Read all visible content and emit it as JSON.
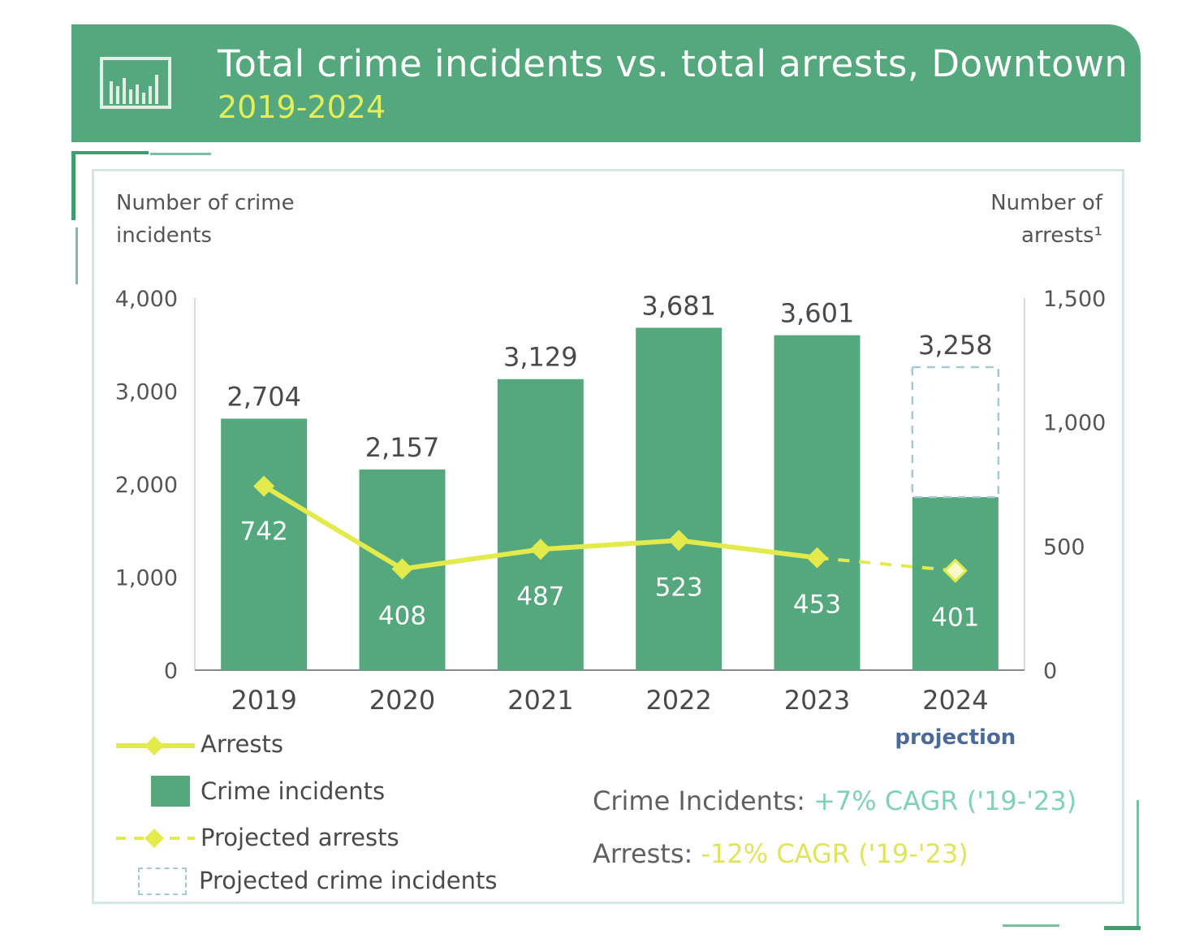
{
  "header": {
    "title": "Total crime incidents vs. total arrests, Downtown",
    "subtitle": "2019-2024",
    "icon": "bar-chart-icon"
  },
  "colors": {
    "header_bg": "#55a87e",
    "bar": "#55a87e",
    "arrests_line": "#e3ea4c",
    "projection_label": "#4a6a9a"
  },
  "left_axis_title": [
    "Number of crime",
    "incidents"
  ],
  "right_axis_title": [
    "Number of",
    "arrests¹"
  ],
  "projection_label": "projection",
  "legend": {
    "arrests": "Arrests",
    "crime": "Crime incidents",
    "projected_arrests": "Projected arrests",
    "projected_crime": "Projected crime incidents"
  },
  "cagr": {
    "crime_label": "Crime Incidents:",
    "crime_value": "+7% CAGR ('19-'23)",
    "arrests_label": "Arrests:",
    "arrests_value": "-12% CAGR ('19-'23)"
  },
  "chart_data": {
    "type": "bar",
    "title": "Total crime incidents vs. total arrests, Downtown",
    "subtitle": "2019-2024",
    "categories": [
      "2019",
      "2020",
      "2021",
      "2022",
      "2023",
      "2024"
    ],
    "series": [
      {
        "name": "Crime incidents",
        "type": "bar",
        "axis": "left",
        "values": [
          2704,
          2157,
          3129,
          3681,
          3601,
          3258
        ],
        "labels": [
          "2,704",
          "2,157",
          "3,129",
          "3,681",
          "3,601",
          "3,258"
        ],
        "projected_index": 5,
        "projected_solid_value": 1860
      },
      {
        "name": "Arrests",
        "type": "line",
        "axis": "right",
        "values": [
          742,
          408,
          487,
          523,
          453,
          401
        ],
        "labels": [
          "742",
          "408",
          "487",
          "523",
          "453",
          "401"
        ],
        "projected_index": 5
      }
    ],
    "left_axis": {
      "ylim": [
        0,
        4000
      ],
      "ticks": [
        "0",
        "1,000",
        "2,000",
        "3,000",
        "4,000"
      ]
    },
    "right_axis": {
      "ylim": [
        0,
        1500
      ],
      "ticks": [
        "0",
        "500",
        "1,000",
        "1,500"
      ]
    },
    "grid": false,
    "legend_position": "bottom-left"
  }
}
